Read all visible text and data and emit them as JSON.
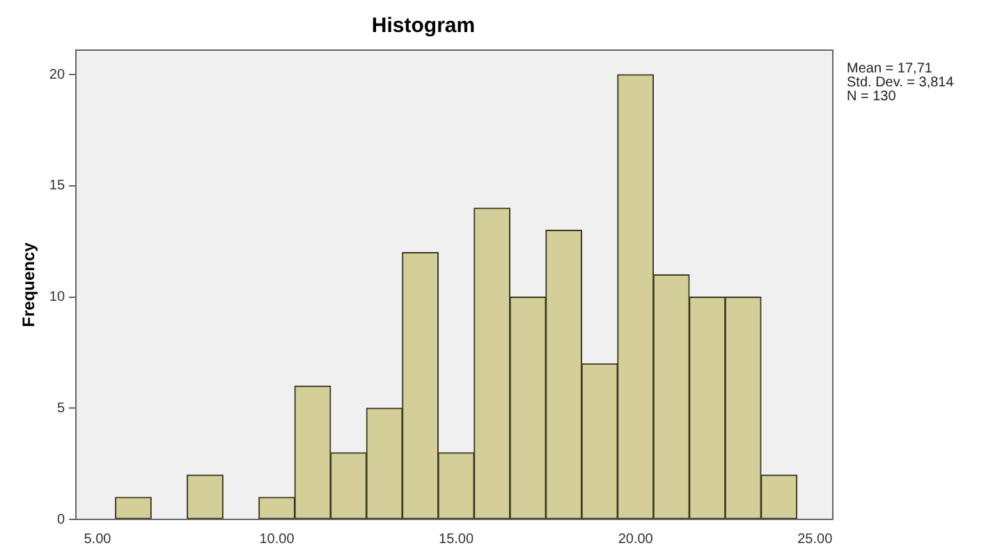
{
  "chart_data": {
    "type": "histogram",
    "title": "Histogram",
    "ylabel": "Frequency",
    "bins": [
      5.5,
      6.5,
      7.5,
      8.5,
      9.5,
      10.5,
      11.5,
      12.5,
      13.5,
      14.5,
      15.5,
      16.5,
      17.5,
      18.5,
      19.5,
      20.5,
      21.5,
      22.5,
      23.5,
      24.5
    ],
    "values": [
      1,
      0,
      2,
      0,
      1,
      6,
      3,
      5,
      12,
      3,
      14,
      10,
      13,
      7,
      20,
      11,
      10,
      10,
      2
    ],
    "color": "#d4cf98",
    "xlim": [
      4.4,
      25.5
    ],
    "ylim": [
      0,
      21.1
    ],
    "xticks": [
      {
        "value": 5,
        "label": "5.00"
      },
      {
        "value": 10,
        "label": "10.00"
      },
      {
        "value": 15,
        "label": "15.00"
      },
      {
        "value": 20,
        "label": "20.00"
      },
      {
        "value": 25,
        "label": "25.00"
      }
    ],
    "yticks": [
      0,
      5,
      10,
      15,
      20
    ],
    "grid": false,
    "legend": false,
    "annotations": [
      "Mean = 17,71",
      "Std. Dev. = 3,814",
      "N = 130"
    ]
  }
}
